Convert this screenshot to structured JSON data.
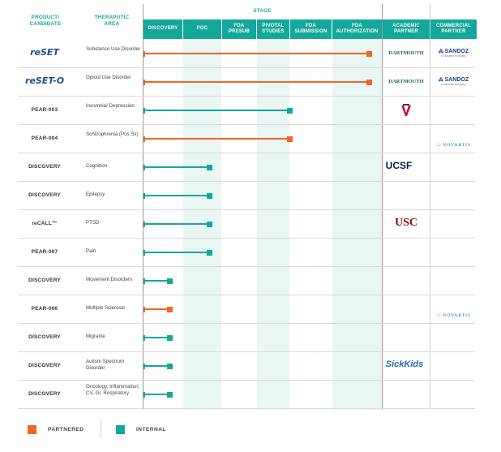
{
  "colors": {
    "partnered": "#f26522",
    "internal": "#13a899"
  },
  "header": {
    "product_candidate": "PRODUCT/ CANDIDATE",
    "therapeutic_area": "THERAPUTIC AREA",
    "stage": "STAGE",
    "stages": [
      "DISCOVERY",
      "POC",
      "FDA PRESUB",
      "PIVOTAL STUDIES",
      "FDA SUBMISSION",
      "FDA AUTHORIZATION"
    ],
    "academic_partner": "ACADEMIC PARTNER",
    "commercial_partner": "COMMERCIAL PARTNER"
  },
  "rows": [
    {
      "candidate": "reSET",
      "candidate_style": "logo",
      "area": "Substance Use Disorder",
      "stage_end": 6,
      "type": "partnered",
      "academic": "DARTMOUTH",
      "academic_logo": "dartmouth-logo",
      "commercial": "SANDOZ",
      "commercial_sub": "a Novartis company",
      "commercial_logo": "sandoz-logo"
    },
    {
      "candidate": "reSET-O",
      "candidate_style": "logo",
      "area": "Opioid Use Disorder",
      "stage_end": 6,
      "type": "partnered",
      "academic": "DARTMOUTH",
      "academic_logo": "dartmouth-logo",
      "commercial": "SANDOZ",
      "commercial_sub": "a Novartis company",
      "commercial_logo": "sandoz-logo"
    },
    {
      "candidate": "PEAR-003",
      "candidate_style": "text",
      "area": "Insomnia/ Depression",
      "stage_end": 4,
      "type": "internal",
      "academic": "",
      "academic_logo": "virginia-logo",
      "commercial": "",
      "commercial_logo": ""
    },
    {
      "candidate": "PEAR-004",
      "candidate_style": "text",
      "area": "Schizophrenia (Pos Sx)",
      "stage_end": 4,
      "type": "partnered",
      "academic": "",
      "academic_logo": "",
      "commercial": "NOVARTIS",
      "commercial_logo": "novartis-logo"
    },
    {
      "candidate": "DISCOVERY",
      "candidate_style": "text",
      "area": "Cognition",
      "stage_end": 2,
      "type": "internal",
      "academic": "UCSF",
      "academic_logo": "ucsf-logo",
      "commercial": "",
      "commercial_logo": ""
    },
    {
      "candidate": "DISCOVERY",
      "candidate_style": "text",
      "area": "Epilepsy",
      "stage_end": 2,
      "type": "internal",
      "academic": "",
      "academic_logo": "",
      "commercial": "",
      "commercial_logo": ""
    },
    {
      "candidate": "reCALL™",
      "candidate_style": "text",
      "area": "PTSD",
      "stage_end": 2,
      "type": "internal",
      "academic": "USC",
      "academic_logo": "usc-logo",
      "commercial": "",
      "commercial_logo": ""
    },
    {
      "candidate": "PEAR-007",
      "candidate_style": "text",
      "area": "Pain",
      "stage_end": 2,
      "type": "internal",
      "academic": "",
      "academic_logo": "",
      "commercial": "",
      "commercial_logo": ""
    },
    {
      "candidate": "DISCOVERY",
      "candidate_style": "text",
      "area": "Movement Disorders",
      "stage_end": 1,
      "type": "internal",
      "academic": "",
      "academic_logo": "",
      "commercial": "",
      "commercial_logo": ""
    },
    {
      "candidate": "PEAR-006",
      "candidate_style": "text",
      "area": "Multiple Sclerosis",
      "stage_end": 1,
      "type": "partnered",
      "academic": "",
      "academic_logo": "",
      "commercial": "NOVARTIS",
      "commercial_logo": "novartis-logo"
    },
    {
      "candidate": "DISCOVERY",
      "candidate_style": "text",
      "area": "Migraine",
      "stage_end": 1,
      "type": "internal",
      "academic": "",
      "academic_logo": "",
      "commercial": "",
      "commercial_logo": ""
    },
    {
      "candidate": "DISCOVERY",
      "candidate_style": "text",
      "area": "Autism Spectrum Disorder",
      "stage_end": 1,
      "type": "internal",
      "academic": "SickKids",
      "academic_logo": "sickkids-logo",
      "commercial": "",
      "commercial_logo": ""
    },
    {
      "candidate": "DISCOVERY",
      "candidate_style": "text",
      "area": "Oncology, Inflammation, CV, GI, Respiratory",
      "stage_end": 1,
      "type": "internal",
      "academic": "",
      "academic_logo": "",
      "commercial": "",
      "commercial_logo": ""
    }
  ],
  "legend": {
    "partnered": "PARTNERED",
    "internal": "INTERNAL"
  }
}
